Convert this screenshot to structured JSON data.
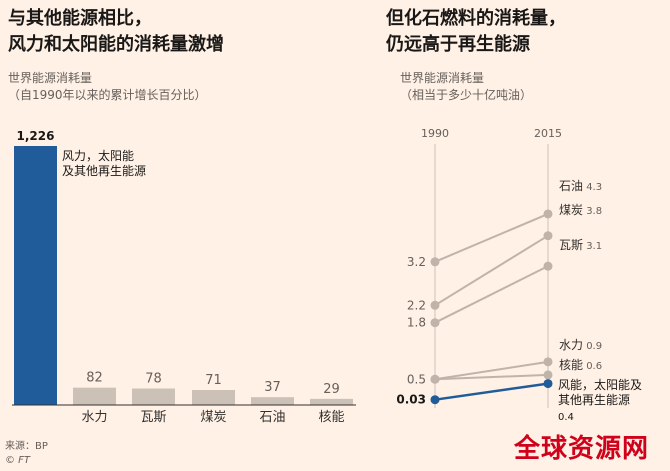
{
  "left": {
    "title_lines": [
      "与其他能源相比，",
      "风力和太阳能的消耗量激增"
    ],
    "subtitle_lines": [
      "世界能源消耗量",
      "（自1990年以来的累计增长百分比）"
    ]
  },
  "right": {
    "title_lines": [
      "但化石燃料的消耗量，",
      "仍远高于再生能源"
    ],
    "subtitle_lines": [
      "世界能源消耗量",
      "（相当于多少十亿吨油）"
    ]
  },
  "footer": {
    "source": "来源：BP",
    "credit": "© FT"
  },
  "watermark": "全球资源网",
  "colors": {
    "highlight": "#1f5c99",
    "neutral": "#ccc1b7",
    "line_grey": "#bfb3aa",
    "bg": "#fff1e5"
  },
  "chart_data": [
    {
      "type": "bar",
      "categories": [
        "风力，太阳能及其他再生能源",
        "水力",
        "瓦斯",
        "煤炭",
        "石油",
        "核能"
      ],
      "category_labels": [
        "",
        "水力",
        "瓦斯",
        "煤炭",
        "石油",
        "核能"
      ],
      "values": [
        1226,
        82,
        78,
        71,
        37,
        29
      ],
      "value_labels": [
        "1,226",
        "82",
        "78",
        "71",
        "37",
        "29"
      ],
      "highlight_label_lines": [
        "风力，太阳能",
        "及其他再生能源"
      ],
      "ylim": [
        0,
        1300
      ]
    },
    {
      "type": "line",
      "x": [
        "1990",
        "2015"
      ],
      "ylim": [
        0,
        4.5
      ],
      "series": [
        {
          "name": "石油",
          "values": [
            3.2,
            4.3
          ],
          "start_label": "3.2",
          "end_label": "4.3"
        },
        {
          "name": "煤炭",
          "values": [
            2.2,
            3.8
          ],
          "start_label": "2.2",
          "end_label": "3.8"
        },
        {
          "name": "瓦斯",
          "values": [
            1.8,
            3.1
          ],
          "start_label": "1.8",
          "end_label": "3.1"
        },
        {
          "name": "水力",
          "values": [
            0.5,
            0.9
          ],
          "start_label": "0.5",
          "end_label": "0.9"
        },
        {
          "name": "核能",
          "values": [
            0.5,
            0.6
          ],
          "start_label": "",
          "end_label": "0.6"
        },
        {
          "name": "风能，太阳能及其他再生能源",
          "values": [
            0.03,
            0.4
          ],
          "start_label": "0.03",
          "end_label": "0.4",
          "label_lines": [
            "风能，太阳能及",
            "其他再生能源"
          ],
          "highlight": true
        }
      ]
    }
  ]
}
